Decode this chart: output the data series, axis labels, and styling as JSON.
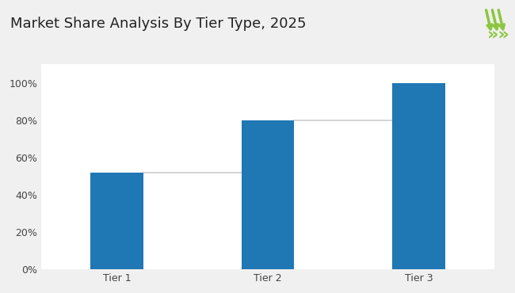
{
  "title": "Market Share Analysis By Tier Type, 2025",
  "categories": [
    "Tier 1",
    "Tier 2",
    "Tier 3"
  ],
  "values": [
    52,
    80,
    100
  ],
  "bar_color": "#1F77B4",
  "background_color": "#f0f0f0",
  "plot_bg_color": "#ffffff",
  "line_color": "#cccccc",
  "title_fontsize": 13,
  "tick_fontsize": 9,
  "ylim": [
    0,
    110
  ],
  "yticks": [
    0,
    20,
    40,
    60,
    80,
    100
  ],
  "ytick_labels": [
    "0%",
    "20%",
    "40%",
    "60%",
    "80%",
    "100%"
  ],
  "accent_line_color": "#8dc63f",
  "arrow_color": "#8dc63f",
  "bar_width": 0.35
}
